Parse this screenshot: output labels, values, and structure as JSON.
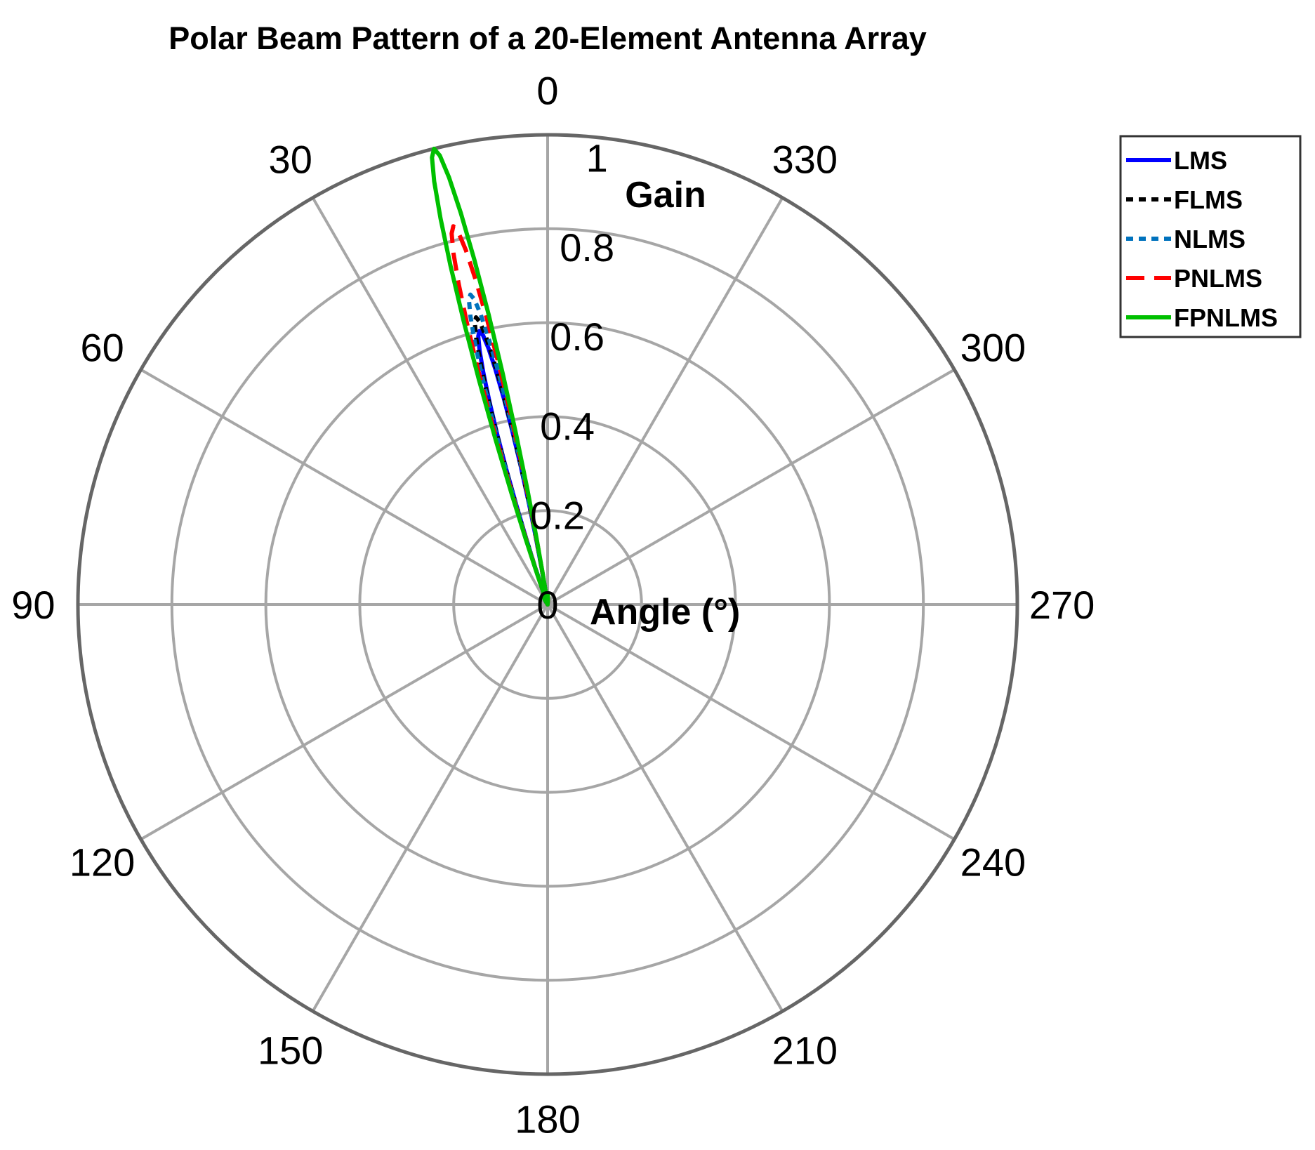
{
  "chart_data": {
    "type": "polar",
    "title": "Polar Beam Pattern of a 20-Element Antenna Array",
    "theta_label": "Angle (°)",
    "r_label": "Gain",
    "theta_zero_location": "top",
    "theta_direction": "counterclockwise",
    "theta_ticks": [
      0,
      30,
      60,
      90,
      120,
      150,
      180,
      210,
      240,
      270,
      300,
      330
    ],
    "theta_tick_labels": [
      "0",
      "30",
      "60",
      "90",
      "120",
      "150",
      "180",
      "210",
      "240",
      "270",
      "300",
      "330"
    ],
    "rlim": [
      0,
      1
    ],
    "r_ticks": [
      0,
      0.2,
      0.4,
      0.6,
      0.8,
      1
    ],
    "r_tick_labels": [
      "0",
      "0.2",
      "0.4",
      "0.6",
      "0.8",
      "1"
    ],
    "grid": true,
    "legend_position": "outside-top-right",
    "series": [
      {
        "name": "LMS",
        "color": "#0000ff",
        "dash": "solid",
        "peak_theta_deg": 14,
        "peak_gain": 0.6,
        "beamwidth_deg": 12
      },
      {
        "name": "FLMS",
        "color": "#000000",
        "dash": "short-dash",
        "peak_theta_deg": 14,
        "peak_gain": 0.63,
        "beamwidth_deg": 12
      },
      {
        "name": "NLMS",
        "color": "#0072bd",
        "dash": "short-dash",
        "peak_theta_deg": 14,
        "peak_gain": 0.68,
        "beamwidth_deg": 12
      },
      {
        "name": "PNLMS",
        "color": "#ff0000",
        "dash": "long-dash",
        "peak_theta_deg": 14,
        "peak_gain": 0.83,
        "beamwidth_deg": 12
      },
      {
        "name": "FPNLMS",
        "color": "#00c000",
        "dash": "solid",
        "peak_theta_deg": 14,
        "peak_gain": 1.0,
        "beamwidth_deg": 12
      }
    ]
  }
}
